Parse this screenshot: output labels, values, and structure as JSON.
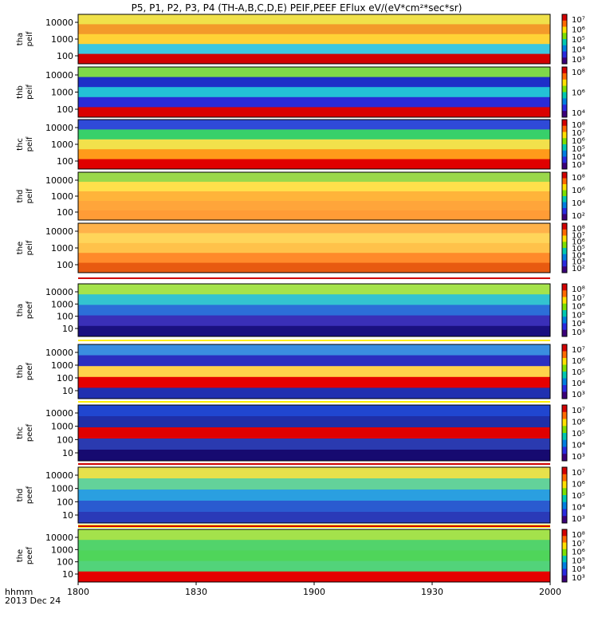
{
  "title": "P5, P1, P2, P3, P4 (TH-A,B,C,D,E) PEIF,PEEF EFlux eV/(eV*cm²*sec*sr)",
  "footer": {
    "time_label": "hhmm",
    "date_label": "2013 Dec 24"
  },
  "chart_data": {
    "type": "heatmap",
    "title": "P5, P1, P2, P3, P4 (TH-A,B,C,D,E) PEIF,PEEF EFlux eV/(eV*cm²*sec*sr)",
    "x_ticks": [
      "1800",
      "1830",
      "1900",
      "1930",
      "2000"
    ],
    "y_ticks_ion": [
      "10000",
      "1000",
      "100"
    ],
    "y_ticks_electron": [
      "10000",
      "1000",
      "100",
      "10"
    ],
    "panels": [
      {
        "label_top": "tha",
        "label_bottom": "peif",
        "colorbar_ticks": [
          "10⁷",
          "10⁶",
          "10⁵",
          "10⁴",
          "10³"
        ],
        "base_colors": [
          "#f0e14a",
          "#f39a2a",
          "#ffd236",
          "#3cc7df",
          "#d20000"
        ]
      },
      {
        "label_top": "thb",
        "label_bottom": "peif",
        "colorbar_ticks": [
          "10⁸",
          "10⁶",
          "10⁴"
        ],
        "base_colors": [
          "#7fd84a",
          "#1e2fc8",
          "#23c1d6",
          "#2a2bd6",
          "#d90000"
        ]
      },
      {
        "label_top": "thc",
        "label_bottom": "peif",
        "colorbar_ticks": [
          "10⁸",
          "10⁷",
          "10⁶",
          "10⁵",
          "10⁴",
          "10³"
        ],
        "base_colors": [
          "#2f4ad8",
          "#38d06a",
          "#f2e14b",
          "#ff9a1a",
          "#e00000"
        ]
      },
      {
        "label_top": "thd",
        "label_bottom": "peif",
        "colorbar_ticks": [
          "10⁸",
          "10⁶",
          "10⁴",
          "10²"
        ],
        "base_colors": [
          "#9ad84b",
          "#ffe04b",
          "#ffb43a",
          "#ffa53a",
          "#ff9c36"
        ]
      },
      {
        "label_top": "the",
        "label_bottom": "peif",
        "colorbar_ticks": [
          "10⁸",
          "10⁷",
          "10⁶",
          "10⁵",
          "10⁴",
          "10³",
          "10²"
        ],
        "base_colors": [
          "#ffb24a",
          "#ffd55a",
          "#ffc24a",
          "#ff8a2a",
          "#e85a10"
        ]
      },
      {
        "label_top": "tha",
        "label_bottom": "peef",
        "colorbar_ticks": [
          "10⁸",
          "10⁷",
          "10⁶",
          "10⁵",
          "10⁴",
          "10³"
        ],
        "base_colors": [
          "#a5e34b",
          "#33c3d0",
          "#2c6ed8",
          "#3a2fb8",
          "#1a1080"
        ]
      },
      {
        "label_top": "thb",
        "label_bottom": "peef",
        "colorbar_ticks": [
          "10⁷",
          "10⁶",
          "10⁵",
          "10⁴",
          "10³"
        ],
        "base_colors": [
          "#3a8ee0",
          "#2b2fc0",
          "#ffd24a",
          "#e60000",
          "#2030b0"
        ]
      },
      {
        "label_top": "thc",
        "label_bottom": "peef",
        "colorbar_ticks": [
          "10⁷",
          "10⁶",
          "10⁵",
          "10⁴",
          "10³"
        ],
        "base_colors": [
          "#2046d0",
          "#1f2fa8",
          "#e00000",
          "#2a3ab0",
          "#160a70"
        ]
      },
      {
        "label_top": "thd",
        "label_bottom": "peef",
        "colorbar_ticks": [
          "10⁷",
          "10⁶",
          "10⁵",
          "10⁴",
          "10³"
        ],
        "base_colors": [
          "#e7e14b",
          "#63d29a",
          "#2a9fe0",
          "#2a5bd0",
          "#2a3ab8"
        ]
      },
      {
        "label_top": "the",
        "label_bottom": "peef",
        "colorbar_ticks": [
          "10⁸",
          "10⁷",
          "10⁶",
          "10⁵",
          "10⁴",
          "10³"
        ],
        "base_colors": [
          "#a4e24b",
          "#52d36b",
          "#4fd55a",
          "#52d37a",
          "#e50000"
        ]
      }
    ]
  }
}
